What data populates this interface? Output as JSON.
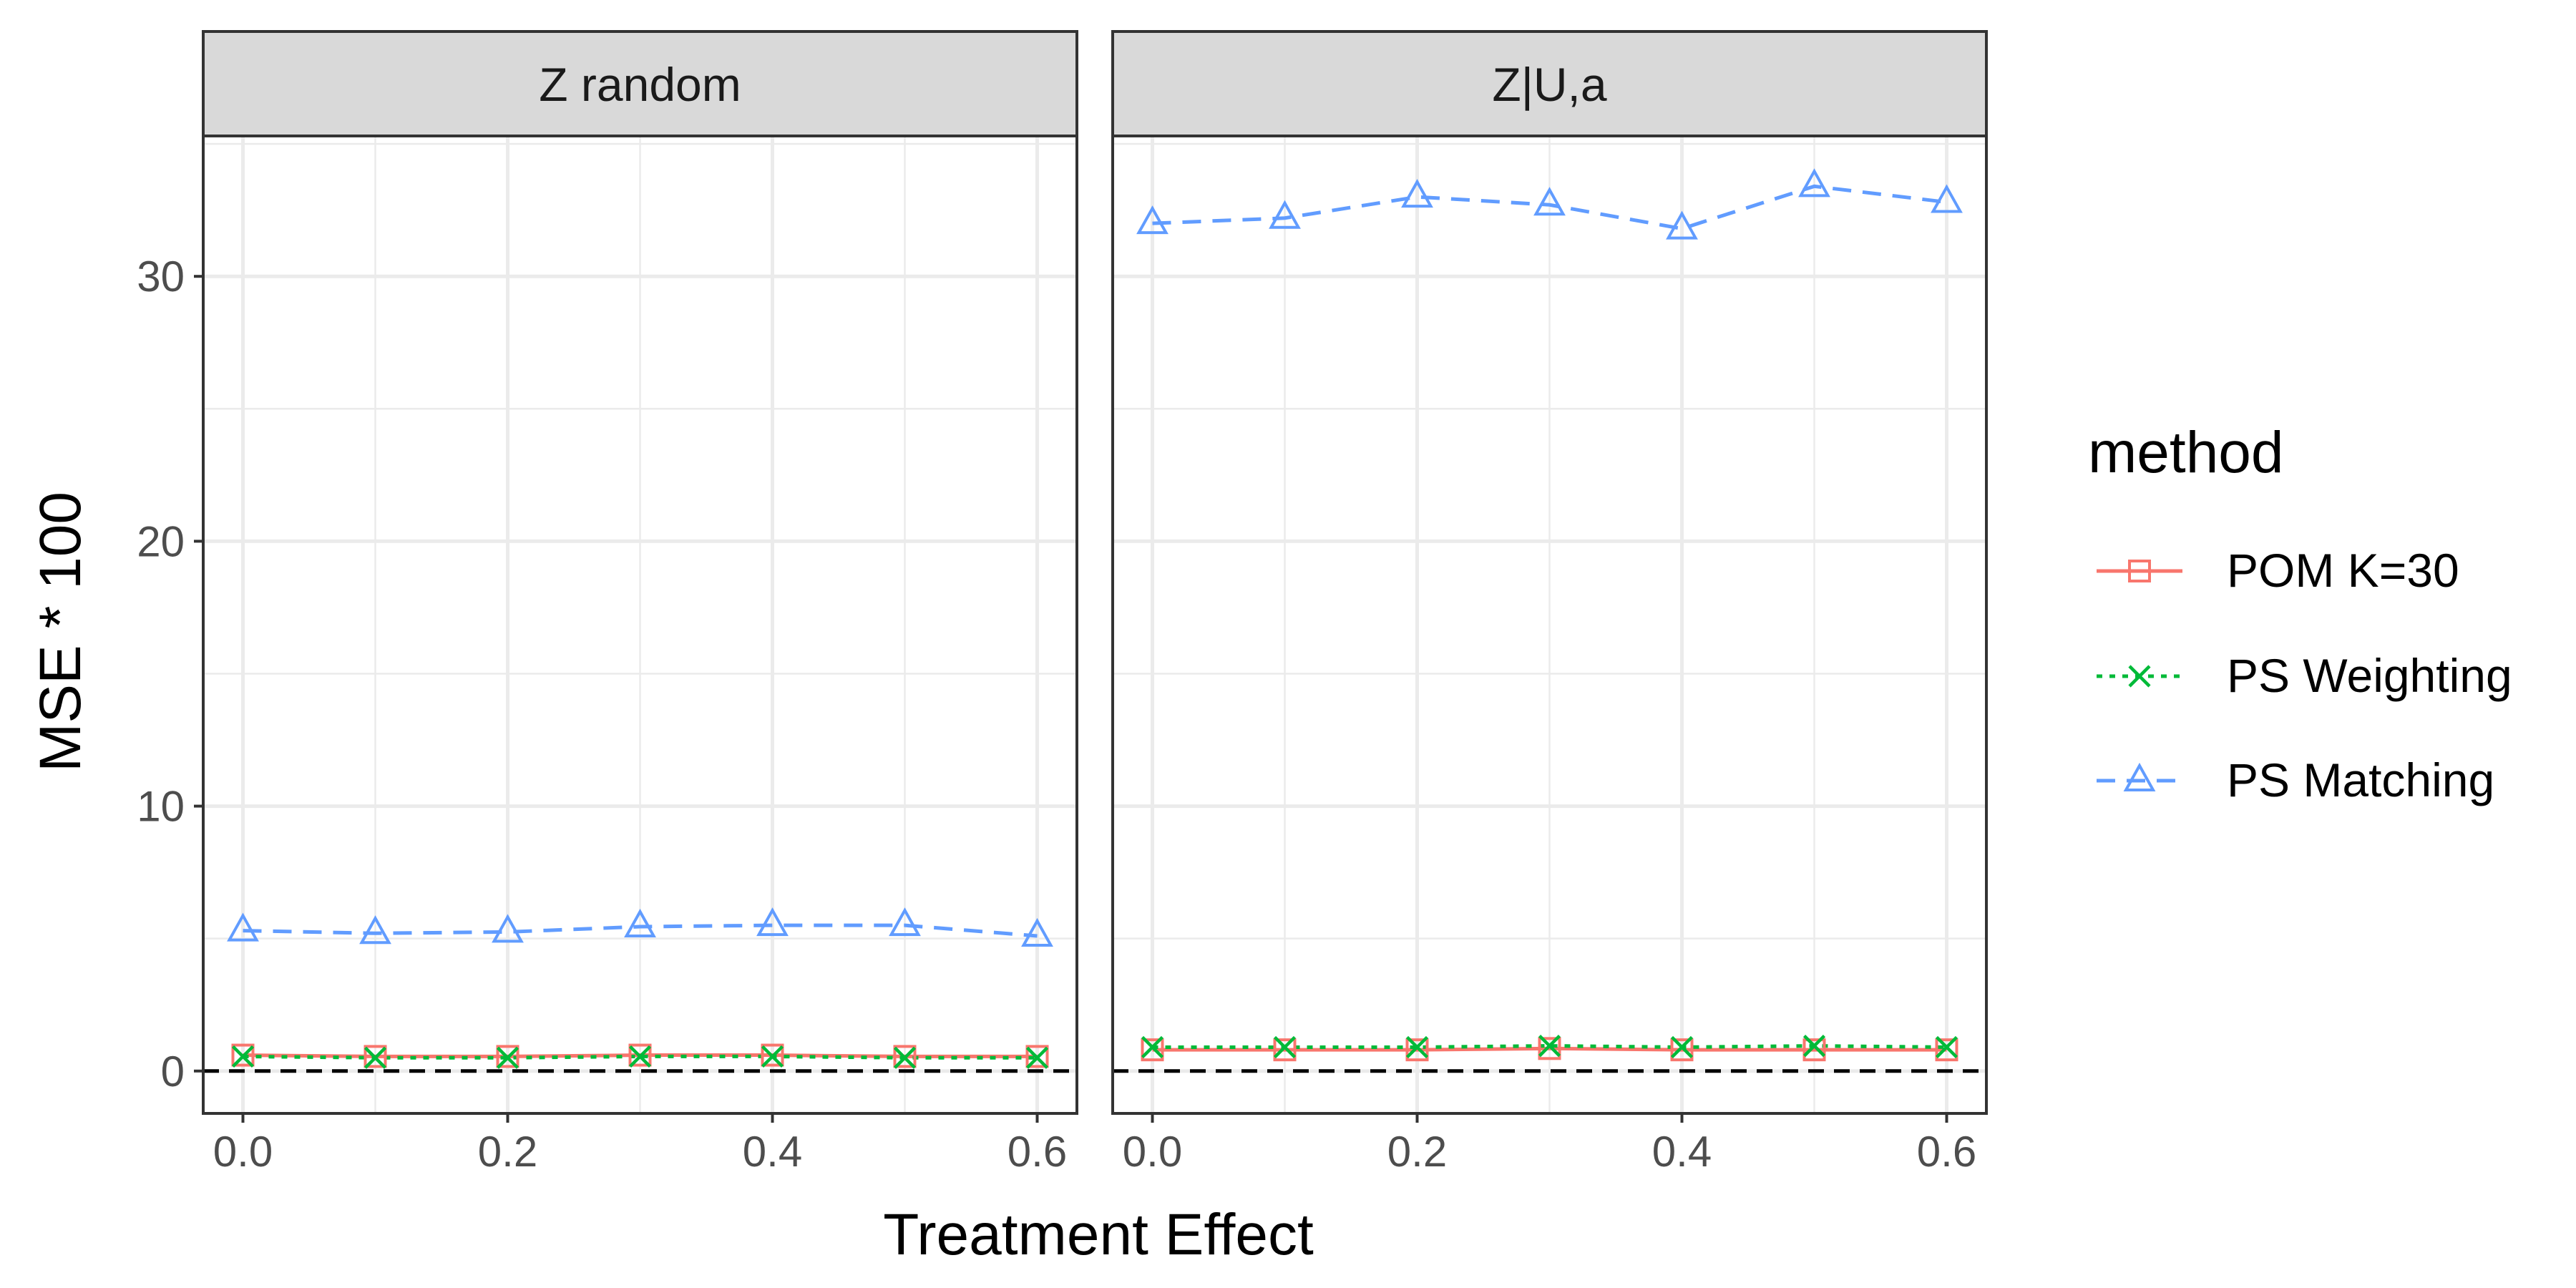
{
  "chart_data": {
    "type": "line",
    "xlabel": "Treatment Effect",
    "ylabel": "MSE * 100",
    "xlim": [
      -0.03,
      0.63
    ],
    "ylim": [
      -1.6,
      35.3
    ],
    "x_ticks": [
      0.0,
      0.1,
      0.2,
      0.3,
      0.4,
      0.5,
      0.6
    ],
    "x_tick_labels": [
      "0.0",
      "0.2",
      "0.4",
      "0.6"
    ],
    "x_tick_label_values": [
      0.0,
      0.2,
      0.4,
      0.6
    ],
    "y_ticks": [
      0,
      10,
      20,
      30
    ],
    "y_tick_labels": [
      "0",
      "10",
      "20",
      "30"
    ],
    "y_minor_ticks": [
      5,
      15,
      25,
      35
    ],
    "reference_line": {
      "y": 0,
      "color": "#000000",
      "style": "dashed"
    },
    "grid": true,
    "legend": {
      "title": "method",
      "position": "right",
      "entries": [
        {
          "label": "POM K=30",
          "color": "#F8766D",
          "marker": "square",
          "linestyle": "solid"
        },
        {
          "label": "PS Weighting",
          "color": "#00BA38",
          "marker": "x",
          "linestyle": "dotted"
        },
        {
          "label": "PS Matching",
          "color": "#619CFF",
          "marker": "triangle",
          "linestyle": "dashed"
        }
      ]
    },
    "panels": [
      {
        "title": "Z random",
        "x": [
          0.0,
          0.1,
          0.2,
          0.3,
          0.4,
          0.5,
          0.6
        ],
        "series": [
          {
            "name": "POM K=30",
            "values": [
              0.6,
              0.55,
              0.55,
              0.6,
              0.6,
              0.55,
              0.55
            ]
          },
          {
            "name": "PS Weighting",
            "values": [
              0.55,
              0.5,
              0.5,
              0.55,
              0.55,
              0.5,
              0.5
            ]
          },
          {
            "name": "PS Matching",
            "values": [
              5.3,
              5.2,
              5.25,
              5.45,
              5.5,
              5.5,
              5.1
            ]
          }
        ]
      },
      {
        "title": "Z|U,a",
        "x": [
          0.0,
          0.1,
          0.2,
          0.3,
          0.4,
          0.5,
          0.6
        ],
        "series": [
          {
            "name": "POM K=30",
            "values": [
              0.8,
              0.8,
              0.8,
              0.85,
              0.8,
              0.8,
              0.8
            ]
          },
          {
            "name": "PS Weighting",
            "values": [
              0.9,
              0.9,
              0.9,
              0.95,
              0.9,
              0.95,
              0.9
            ]
          },
          {
            "name": "PS Matching",
            "values": [
              32.0,
              32.2,
              33.0,
              32.7,
              31.8,
              33.4,
              32.8
            ]
          }
        ]
      }
    ]
  }
}
